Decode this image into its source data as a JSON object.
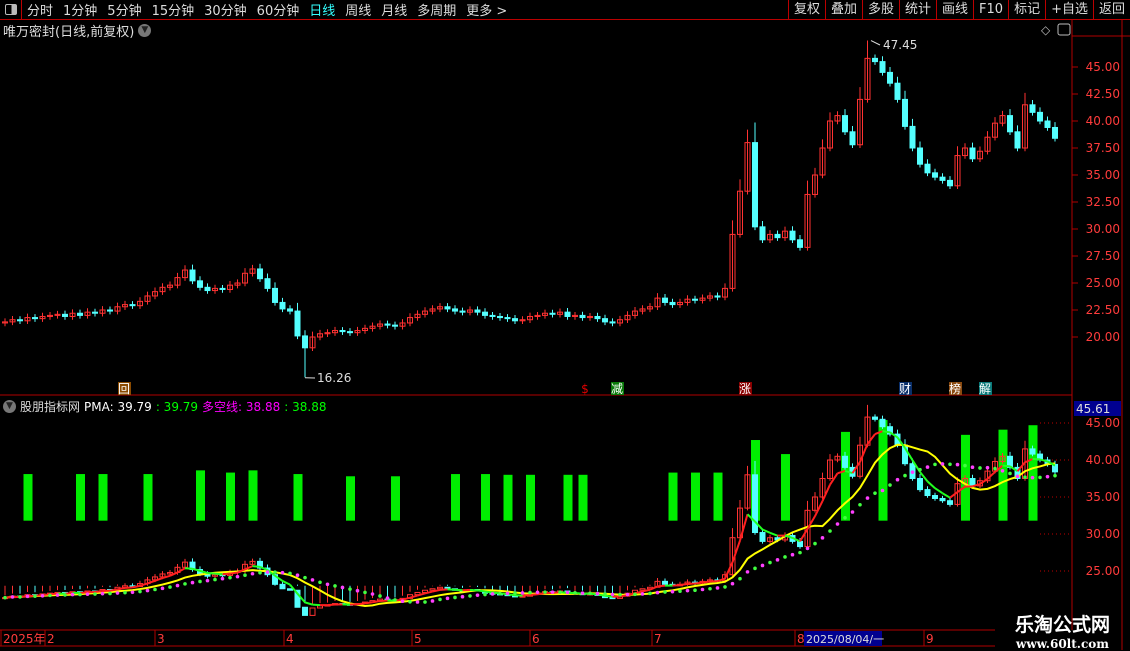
{
  "toolbar": {
    "periods": [
      "分时",
      "1分钟",
      "5分钟",
      "15分钟",
      "30分钟",
      "60分钟",
      "日线",
      "周线",
      "月线",
      "多周期",
      "更多 >"
    ],
    "active": "日线",
    "right_buttons": [
      "复权",
      "叠加",
      "多股",
      "统计",
      "画线",
      "F10",
      "标记",
      "+自选",
      "返回"
    ]
  },
  "main": {
    "title": "唯万密封(日线,前复权)",
    "high_label": "47.45",
    "low_label": "16.26",
    "y_ticks": [
      "45.00",
      "42.50",
      "40.00",
      "37.50",
      "35.00",
      "32.50",
      "30.00",
      "27.50",
      "25.00",
      "22.50",
      "20.00"
    ],
    "markers": [
      {
        "text": "回",
        "color": "#8a4a00"
      },
      {
        "text": "$",
        "color": "#e00000"
      },
      {
        "text": "减",
        "color": "#0a7a0a"
      },
      {
        "text": "涨",
        "color": "#8a0000"
      },
      {
        "text": "财",
        "color": "#0a2f6a"
      },
      {
        "text": "榜",
        "color": "#8a4a10"
      },
      {
        "text": "解",
        "color": "#0a7a7a"
      }
    ]
  },
  "indicator": {
    "name": "股朋指标网",
    "pma_label": "PMA: 39.79",
    "pma_value": ": 39.79",
    "dk_label": "多空线: 38.88",
    "dk_value": ": 38.88",
    "current_value": "45.61",
    "y_ticks": [
      "45.00",
      "40.00",
      "35.00",
      "30.00",
      "25.00"
    ]
  },
  "xaxis": {
    "labels": [
      "2025年",
      "2",
      "3",
      "4",
      "5",
      "6",
      "7",
      "8",
      "9"
    ],
    "cursor_date": "2025/08/04/一"
  },
  "watermark": {
    "name": "乐淘公式网",
    "url": "www.60lt.com"
  },
  "colors": {
    "up": "#ff3232",
    "down": "#54ffff",
    "border": "#b00000",
    "bars": "#00ee00",
    "pma": "#ffff00"
  },
  "chart_data": {
    "type": "candlestick",
    "x_range": [
      "2025-01",
      "2025-09"
    ],
    "closes": [
      21.4,
      21.6,
      21.5,
      21.8,
      21.7,
      21.9,
      22.0,
      22.1,
      21.9,
      22.2,
      22.0,
      22.3,
      22.2,
      22.5,
      22.4,
      22.8,
      23.0,
      22.9,
      23.3,
      23.8,
      24.2,
      24.6,
      24.8,
      25.5,
      26.2,
      25.2,
      24.6,
      24.3,
      24.5,
      24.4,
      24.8,
      25.0,
      25.9,
      26.3,
      25.4,
      24.5,
      23.2,
      22.6,
      22.4,
      20.1,
      19.0,
      20.0,
      20.3,
      20.4,
      20.6,
      20.5,
      20.4,
      20.6,
      20.8,
      21.0,
      21.2,
      21.1,
      21.0,
      21.3,
      21.8,
      22.1,
      22.4,
      22.6,
      22.8,
      22.6,
      22.4,
      22.3,
      22.5,
      22.3,
      22.0,
      21.9,
      21.8,
      21.7,
      21.5,
      21.6,
      21.9,
      22.0,
      22.2,
      22.1,
      22.3,
      21.9,
      22.0,
      21.8,
      21.9,
      21.7,
      21.4,
      21.3,
      21.6,
      22.0,
      22.4,
      22.6,
      22.8,
      23.6,
      23.2,
      23.0,
      23.2,
      23.5,
      23.4,
      23.6,
      23.8,
      23.7,
      24.5,
      29.5,
      33.5,
      38.0,
      30.2,
      29.0,
      29.5,
      29.2,
      29.8,
      29.0,
      28.3,
      33.2,
      35.0,
      37.5,
      40.0,
      40.5,
      39.0,
      37.8,
      42.0,
      45.8,
      45.5,
      44.5,
      43.5,
      42.0,
      39.5,
      37.5,
      36.0,
      35.2,
      34.8,
      34.5,
      34.0,
      36.8,
      37.5,
      36.5,
      37.2,
      38.5,
      39.8,
      40.5,
      39.0,
      37.5,
      41.5,
      40.8,
      40.0,
      39.4,
      38.4
    ],
    "high": 47.45,
    "low": 16.26,
    "signal_bars": [
      {
        "idx": 3,
        "top": 38.1
      },
      {
        "idx": 10,
        "top": 38.1
      },
      {
        "idx": 13,
        "top": 38.1
      },
      {
        "idx": 19,
        "top": 38.1
      },
      {
        "idx": 26,
        "top": 38.6
      },
      {
        "idx": 30,
        "top": 38.3
      },
      {
        "idx": 33,
        "top": 38.6
      },
      {
        "idx": 39,
        "top": 38.1
      },
      {
        "idx": 46,
        "top": 37.8
      },
      {
        "idx": 52,
        "top": 37.8
      },
      {
        "idx": 60,
        "top": 38.1
      },
      {
        "idx": 64,
        "top": 38.1
      },
      {
        "idx": 67,
        "top": 38.0
      },
      {
        "idx": 70,
        "top": 38.0
      },
      {
        "idx": 75,
        "top": 38.0
      },
      {
        "idx": 77,
        "top": 38.0
      },
      {
        "idx": 89,
        "top": 38.3
      },
      {
        "idx": 92,
        "top": 38.3
      },
      {
        "idx": 95,
        "top": 38.3
      },
      {
        "idx": 100,
        "top": 42.7
      },
      {
        "idx": 104,
        "top": 40.8
      },
      {
        "idx": 112,
        "top": 43.8
      },
      {
        "idx": 117,
        "top": 45.4
      },
      {
        "idx": 128,
        "top": 43.4
      },
      {
        "idx": 133,
        "top": 44.1
      },
      {
        "idx": 137,
        "top": 44.7
      }
    ]
  }
}
